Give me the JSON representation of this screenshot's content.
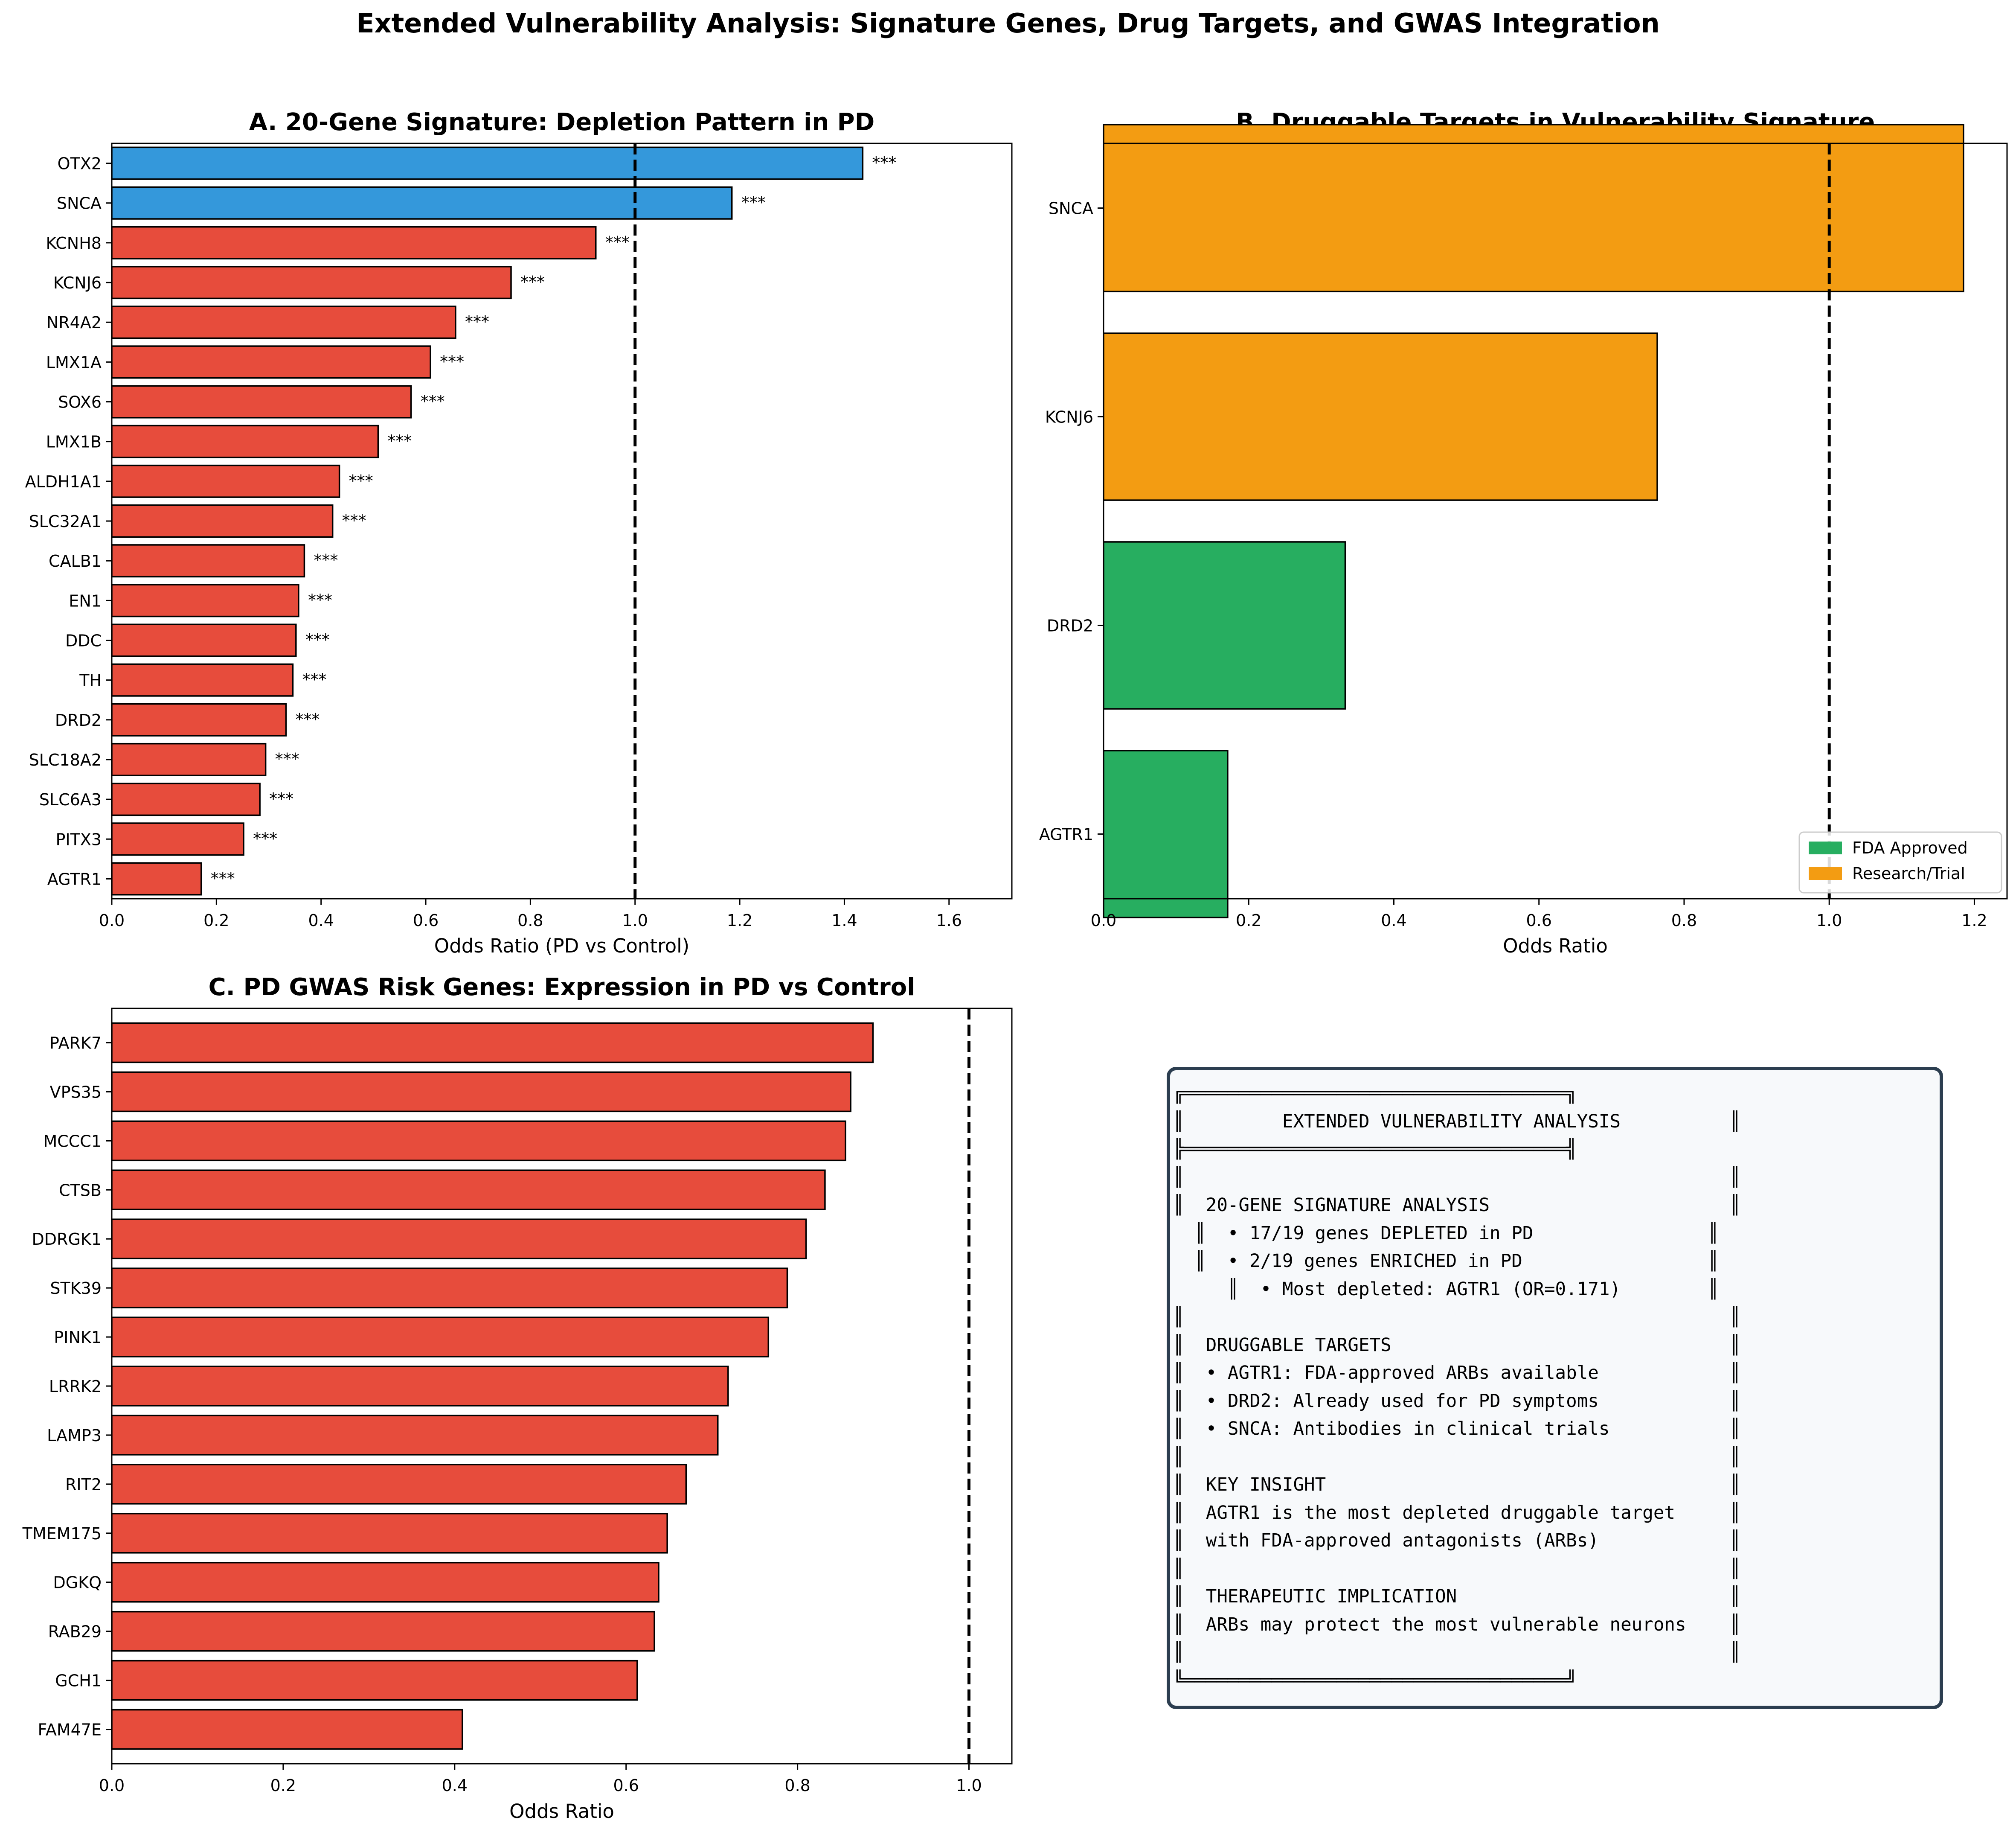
{
  "title": "Extended Vulnerability Analysis: Signature Genes, Drug Targets, and GWAS Integration",
  "colors": {
    "depleted": "#e74c3c",
    "enriched": "#3498db",
    "fda": "#27ae60",
    "research": "#f39c12",
    "box_border": "#2c3e50",
    "box_bg": "#f7f9fb"
  },
  "chart_data": [
    {
      "id": "A",
      "type": "bar",
      "orientation": "horizontal",
      "title": "A. 20-Gene Signature: Depletion Pattern in PD",
      "xlabel": "Odds Ratio (PD vs Control)",
      "ylabel": "",
      "xlim": [
        0,
        1.72
      ],
      "xticks": [
        0.0,
        0.2,
        0.4,
        0.6,
        0.8,
        1.0,
        1.2,
        1.4,
        1.6
      ],
      "tick_format": "0.0",
      "reference_line": 1.0,
      "categories": [
        "OTX2",
        "SNCA",
        "KCNH8",
        "KCNJ6",
        "NR4A2",
        "LMX1A",
        "SOX6",
        "LMX1B",
        "ALDH1A1",
        "SLC32A1",
        "CALB1",
        "EN1",
        "DDC",
        "TH",
        "DRD2",
        "SLC18A2",
        "SLC6A3",
        "PITX3",
        "AGTR1"
      ],
      "values": [
        1.435,
        1.185,
        0.925,
        0.763,
        0.657,
        0.609,
        0.572,
        0.509,
        0.435,
        0.422,
        0.368,
        0.357,
        0.352,
        0.346,
        0.333,
        0.294,
        0.283,
        0.252,
        0.171
      ],
      "groups": [
        "enriched",
        "enriched",
        "depleted",
        "depleted",
        "depleted",
        "depleted",
        "depleted",
        "depleted",
        "depleted",
        "depleted",
        "depleted",
        "depleted",
        "depleted",
        "depleted",
        "depleted",
        "depleted",
        "depleted",
        "depleted",
        "depleted"
      ],
      "annotations": [
        "***",
        "***",
        "***",
        "***",
        "***",
        "***",
        "***",
        "***",
        "***",
        "***",
        "***",
        "***",
        "***",
        "***",
        "***",
        "***",
        "***",
        "***",
        "***"
      ]
    },
    {
      "id": "B",
      "type": "bar",
      "orientation": "horizontal",
      "title": "B. Druggable Targets in Vulnerability Signature",
      "xlabel": "Odds Ratio",
      "ylabel": "",
      "xlim": [
        0,
        1.245
      ],
      "xticks": [
        0.0,
        0.2,
        0.4,
        0.6,
        0.8,
        1.0,
        1.2
      ],
      "tick_format": "0.0",
      "reference_line": 1.0,
      "categories": [
        "SNCA",
        "KCNJ6",
        "DRD2",
        "AGTR1"
      ],
      "values": [
        1.185,
        0.763,
        0.333,
        0.171
      ],
      "groups": [
        "research",
        "research",
        "fda",
        "fda"
      ],
      "legend": [
        {
          "label": "FDA Approved",
          "group": "fda"
        },
        {
          "label": "Research/Trial",
          "group": "research"
        }
      ],
      "legend_position": "lower-right"
    },
    {
      "id": "C",
      "type": "bar",
      "orientation": "horizontal",
      "title": "C. PD GWAS Risk Genes: Expression in PD vs Control",
      "xlabel": "Odds Ratio",
      "ylabel": "",
      "xlim": [
        0,
        1.05
      ],
      "xticks": [
        0.0,
        0.2,
        0.4,
        0.6,
        0.8,
        1.0
      ],
      "tick_format": "0.0",
      "reference_line": 1.0,
      "categories": [
        "PARK7",
        "VPS35",
        "MCCC1",
        "CTSB",
        "DDRGK1",
        "STK39",
        "PINK1",
        "LRRK2",
        "LAMP3",
        "RIT2",
        "TMEM175",
        "DGKQ",
        "RAB29",
        "GCH1",
        "FAM47E"
      ],
      "values": [
        0.888,
        0.862,
        0.856,
        0.832,
        0.81,
        0.788,
        0.766,
        0.719,
        0.707,
        0.67,
        0.648,
        0.638,
        0.633,
        0.613,
        0.409
      ],
      "groups": [
        "depleted",
        "depleted",
        "depleted",
        "depleted",
        "depleted",
        "depleted",
        "depleted",
        "depleted",
        "depleted",
        "depleted",
        "depleted",
        "depleted",
        "depleted",
        "depleted",
        "depleted"
      ]
    }
  ],
  "summary": {
    "lines": [
      "╔═══════════════════════════════════╗",
      "║         EXTENDED VULNERABILITY ANALYSIS          ║",
      "╠═══════════════════════════════════╣",
      "║                                                  ║",
      "║  20-GENE SIGNATURE ANALYSIS                      ║",
      "  ║  • 17/19 genes DEPLETED in PD                ║",
      "  ║  • 2/19 genes ENRICHED in PD                 ║",
      "     ║  • Most depleted: AGTR1 (OR=0.171)        ║",
      "║                                                  ║",
      "║  DRUGGABLE TARGETS                               ║",
      "║  • AGTR1: FDA-approved ARBs available            ║",
      "║  • DRD2: Already used for PD symptoms            ║",
      "║  • SNCA: Antibodies in clinical trials           ║",
      "║                                                  ║",
      "║  KEY INSIGHT                                     ║",
      "║  AGTR1 is the most depleted druggable target     ║",
      "║  with FDA-approved antagonists (ARBs)            ║",
      "║                                                  ║",
      "║  THERAPEUTIC IMPLICATION                         ║",
      "║  ARBs may protect the most vulnerable neurons    ║",
      "║                                                  ║",
      "╚═══════════════════════════════════╝"
    ]
  }
}
